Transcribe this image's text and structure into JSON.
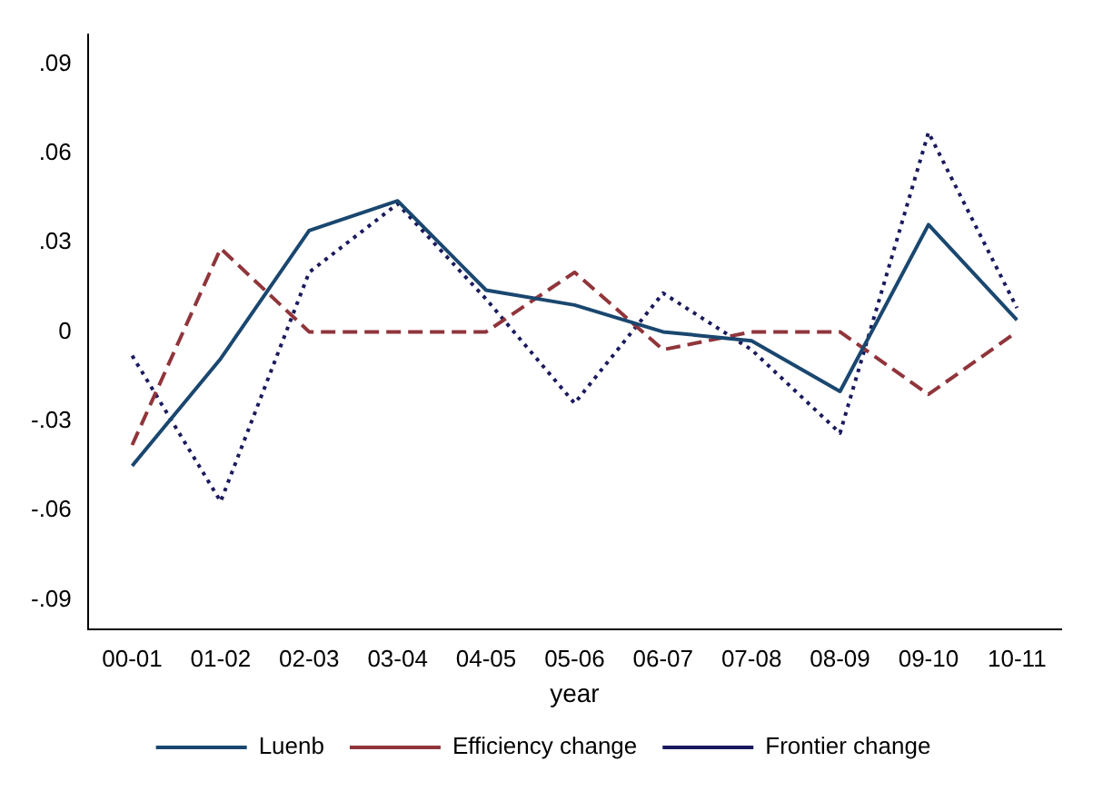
{
  "chart_data": {
    "type": "line",
    "xlabel": "year",
    "categories": [
      "00-01",
      "01-02",
      "02-03",
      "03-04",
      "04-05",
      "05-06",
      "06-07",
      "07-08",
      "08-09",
      "09-10",
      "10-11"
    ],
    "series": [
      {
        "name": "Luenb",
        "color": "#1a476f",
        "line_style": "solid",
        "values": [
          -0.045,
          -0.009,
          0.034,
          0.044,
          0.014,
          0.009,
          0,
          -0.003,
          -0.02,
          0.036,
          0.004
        ]
      },
      {
        "name": "Efficiency change",
        "color": "#90353b",
        "line_style": "dashed",
        "values": [
          -0.038,
          0.028,
          0,
          0,
          0,
          0.02,
          -0.006,
          0,
          0,
          -0.021,
          0
        ]
      },
      {
        "name": "Frontier change",
        "color": "#1a1a5e",
        "line_style": "dotted",
        "values": [
          -0.008,
          -0.057,
          0.02,
          0.043,
          0.011,
          -0.024,
          0.013,
          -0.006,
          -0.034,
          0.067,
          0.008
        ]
      }
    ],
    "ylim": [
      -0.1,
      0.1
    ],
    "yticks": [
      {
        "value": -0.09,
        "label": "-.09"
      },
      {
        "value": -0.06,
        "label": "-.06"
      },
      {
        "value": -0.03,
        "label": "-.03"
      },
      0,
      {
        "value": 0.03,
        "label": ".03"
      },
      {
        "value": 0.06,
        "label": ".06"
      },
      {
        "value": 0.09,
        "label": ".09"
      }
    ],
    "grid": false,
    "legend": "bottom",
    "marker": "none"
  }
}
